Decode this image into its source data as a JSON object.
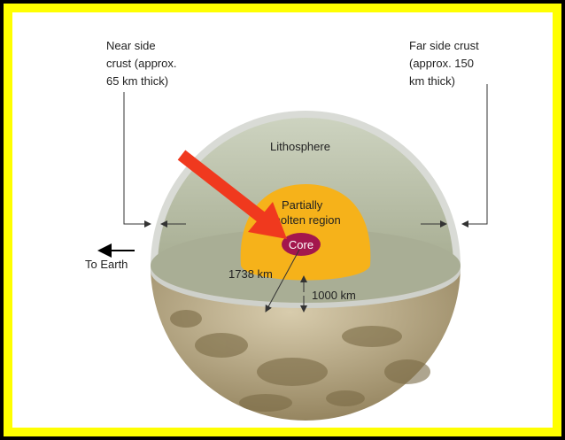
{
  "labels": {
    "near_side": [
      "Near side",
      "crust (approx.",
      "65 km thick)"
    ],
    "far_side": [
      "Far side crust",
      "(approx. 150",
      "km thick)"
    ],
    "lithosphere": "Lithosphere",
    "molten": [
      "Partially",
      "molten region"
    ],
    "core": "Core",
    "to_earth": "To Earth",
    "radius": "1738 km",
    "depth": "1000 km"
  }
}
